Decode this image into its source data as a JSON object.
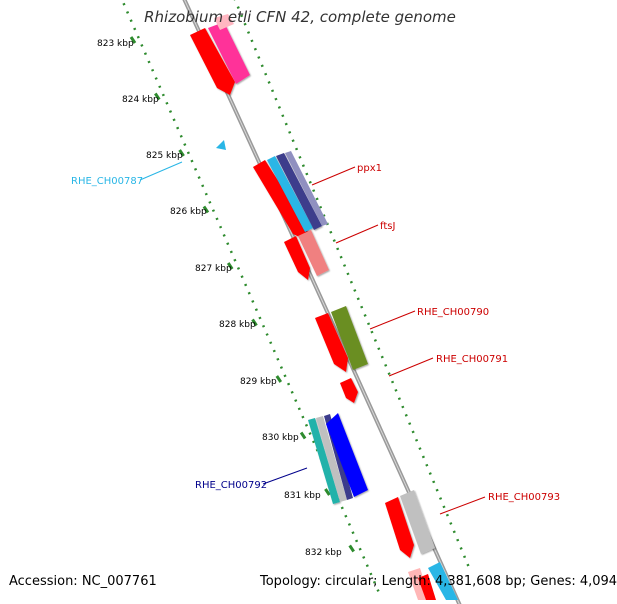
{
  "title": "Rhizobium etli CFN 42, complete genome",
  "footer": {
    "accession": "Accession: NC_007761",
    "summary": "Topology: circular; Length: 4,381,608 bp; Genes: 4,094"
  },
  "ruler_ticks": [
    "823 kbp",
    "824 kbp",
    "825 kbp",
    "826 kbp",
    "827 kbp",
    "828 kbp",
    "829 kbp",
    "830 kbp",
    "831 kbp",
    "832 kbp"
  ],
  "gene_labels": [
    {
      "text": "RHE_CH00787",
      "color": "#29b6e6"
    },
    {
      "text": "ppx1",
      "color": "#cc0000"
    },
    {
      "text": "ftsJ",
      "color": "#cc0000"
    },
    {
      "text": "RHE_CH00790",
      "color": "#cc0000"
    },
    {
      "text": "RHE_CH00791",
      "color": "#cc0000"
    },
    {
      "text": "RHE_CH00792",
      "color": "#00008b"
    },
    {
      "text": "RHE_CH00793",
      "color": "#cc0000"
    }
  ],
  "colors": {
    "backbone": "#8c8c8c",
    "ruler_dots": "#2e8b2e",
    "red_gene": "#ff0000",
    "magenta_gene": "#ff3399",
    "pink_gene": "#f08080",
    "olive_gene": "#6b8e23",
    "blue_gene": "#0000ff",
    "navy_gene": "#3c3c8c",
    "cyan_gene": "#29b6e6",
    "teal_gene": "#20b2aa",
    "gray_gene": "#c0c0c0"
  }
}
